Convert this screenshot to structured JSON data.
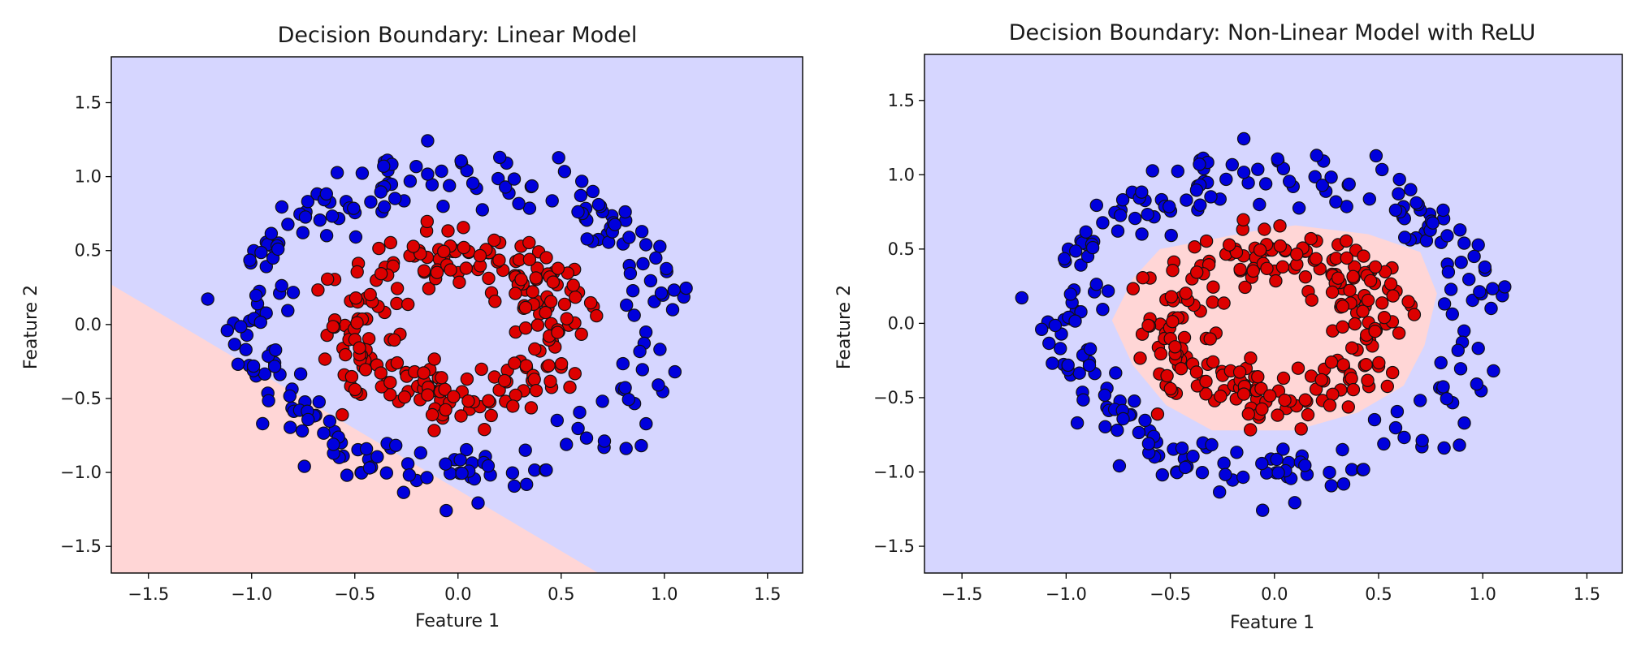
{
  "colors": {
    "class0_point": "#0000dd",
    "class1_point": "#dd0000",
    "class0_region": "#d6d6ff",
    "class1_region": "#ffd6d6",
    "marker_edge": "#111111"
  },
  "chart_data": [
    {
      "type": "scatter",
      "title": "Decision Boundary: Linear Model",
      "xlabel": "Feature 1",
      "ylabel": "Feature 2",
      "xlim": [
        -1.68,
        1.67
      ],
      "ylim": [
        -1.68,
        1.81
      ],
      "xticks": [
        -1.5,
        -1.0,
        -0.5,
        0.0,
        0.5,
        1.0,
        1.5
      ],
      "xtick_labels": [
        "−1.5",
        "−1.0",
        "−0.5",
        "0.0",
        "0.5",
        "1.0",
        "1.5"
      ],
      "yticks": [
        -1.5,
        -1.0,
        -0.5,
        0.0,
        0.5,
        1.0,
        1.5
      ],
      "ytick_labels": [
        "−1.5",
        "−1.0",
        "−0.5",
        "0.0",
        "0.5",
        "1.0",
        "1.5"
      ],
      "regions": [
        {
          "class": 1,
          "polygon": [
            [
              -1.68,
              0.27
            ],
            [
              -1.68,
              -1.68
            ],
            [
              0.68,
              -1.68
            ]
          ]
        }
      ],
      "series": [
        {
          "name": "outer ring (class 0)",
          "class": 0,
          "ring_radius": 1.0,
          "count": 250
        },
        {
          "name": "inner ring (class 1)",
          "class": 1,
          "ring_radius": 0.5,
          "count": 250
        }
      ]
    },
    {
      "type": "scatter",
      "title": "Decision Boundary: Non-Linear Model with ReLU",
      "xlabel": "Feature 1",
      "ylabel": "Feature 2",
      "xlim": [
        -1.68,
        1.67
      ],
      "ylim": [
        -1.68,
        1.81
      ],
      "xticks": [
        -1.5,
        -1.0,
        -0.5,
        0.0,
        0.5,
        1.0,
        1.5
      ],
      "xtick_labels": [
        "−1.5",
        "−1.0",
        "−0.5",
        "0.0",
        "0.5",
        "1.0",
        "1.5"
      ],
      "yticks": [
        -1.5,
        -1.0,
        -0.5,
        0.0,
        0.5,
        1.0,
        1.5
      ],
      "ytick_labels": [
        "−1.5",
        "−1.0",
        "−0.5",
        "0.0",
        "0.5",
        "1.0",
        "1.5"
      ],
      "regions": [
        {
          "class": 1,
          "polygon": [
            [
              -0.68,
              0.3
            ],
            [
              -0.55,
              0.5
            ],
            [
              -0.1,
              0.62
            ],
            [
              0.1,
              0.66
            ],
            [
              0.45,
              0.6
            ],
            [
              0.7,
              0.48
            ],
            [
              0.78,
              0.2
            ],
            [
              0.72,
              -0.15
            ],
            [
              0.62,
              -0.42
            ],
            [
              0.4,
              -0.6
            ],
            [
              0.1,
              -0.72
            ],
            [
              -0.3,
              -0.72
            ],
            [
              -0.52,
              -0.55
            ],
            [
              -0.68,
              -0.28
            ],
            [
              -0.78,
              0.02
            ]
          ]
        }
      ],
      "series": [
        {
          "name": "outer ring (class 0)",
          "class": 0,
          "ring_radius": 1.0,
          "count": 250
        },
        {
          "name": "inner ring (class 1)",
          "class": 1,
          "ring_radius": 0.5,
          "count": 250
        }
      ]
    }
  ]
}
